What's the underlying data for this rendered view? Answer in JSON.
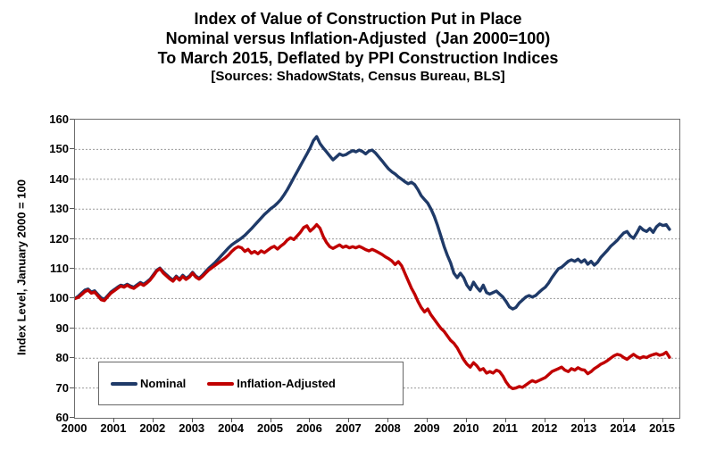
{
  "title": {
    "line1": "Index of Value of Construction Put in Place",
    "line2": "Nominal versus Inflation-Adjusted  (Jan 2000=100)",
    "line3": "To March 2015, Deflated by PPI Construction Indices",
    "line4": "[Sources: ShadowStats, Census Bureau, BLS]"
  },
  "y_axis": {
    "title": "Index Level, January 2000 = 100",
    "min": 60,
    "max": 160,
    "step": 10,
    "tick_labels": [
      160,
      150,
      140,
      130,
      120,
      110,
      100,
      90,
      80,
      70,
      60
    ]
  },
  "x_axis": {
    "tick_labels": [
      "2000",
      "2001",
      "2002",
      "2003",
      "2004",
      "2005",
      "2006",
      "2007",
      "2008",
      "2009",
      "2010",
      "2011",
      "2012",
      "2013",
      "2014",
      "2015"
    ]
  },
  "legend": {
    "items": [
      {
        "label": "Nominal",
        "color": "#1f3a68"
      },
      {
        "label": "Inflation-Adjusted",
        "color": "#c00000"
      }
    ]
  },
  "chart_data": {
    "type": "line",
    "title": "Index of Value of Construction Put in Place, Nominal versus Inflation-Adjusted (Jan 2000=100), To March 2015, Deflated by PPI Construction Indices",
    "xlabel": "",
    "ylabel": "Index Level, January 2000 = 100",
    "ylim": [
      60,
      160
    ],
    "grid": "horizontal-dotted",
    "legend_position": "inside bottom-left",
    "x_start_year": 2000.0,
    "x_step_years": 0.08333,
    "x_end_year": 2015.167,
    "x_axis_range": [
      2000,
      2015.42
    ],
    "x_note": "monthly data, Jan 2000 - Mar 2015",
    "series": [
      {
        "name": "Nominal",
        "color": "#1f3a68",
        "values": [
          100.0,
          100.8,
          101.8,
          102.8,
          103.2,
          102.2,
          102.6,
          101.4,
          100.2,
          99.8,
          101.0,
          102.2,
          103.0,
          103.8,
          104.5,
          104.2,
          104.8,
          104.2,
          103.8,
          104.6,
          105.4,
          104.8,
          105.6,
          106.5,
          108.0,
          109.5,
          110.2,
          109.0,
          108.0,
          107.0,
          106.2,
          107.5,
          106.5,
          107.8,
          106.8,
          107.5,
          108.8,
          107.5,
          106.8,
          107.8,
          109.0,
          110.2,
          111.2,
          112.2,
          113.4,
          114.6,
          115.8,
          117.0,
          118.0,
          118.8,
          119.5,
          120.3,
          121.2,
          122.3,
          123.4,
          124.6,
          125.8,
          127.0,
          128.2,
          129.2,
          130.2,
          131.0,
          132.0,
          133.2,
          134.8,
          136.5,
          138.5,
          140.5,
          142.5,
          144.5,
          146.5,
          148.5,
          150.5,
          153.0,
          154.3,
          152.0,
          150.5,
          149.2,
          147.8,
          146.5,
          147.5,
          148.5,
          148.0,
          148.3,
          149.0,
          149.6,
          149.2,
          149.8,
          149.3,
          148.5,
          149.5,
          149.8,
          148.8,
          147.5,
          146.2,
          144.8,
          143.5,
          142.5,
          141.8,
          140.8,
          140.0,
          139.2,
          138.5,
          139.0,
          138.2,
          136.5,
          134.5,
          133.2,
          132.0,
          130.0,
          127.5,
          124.5,
          121.0,
          117.5,
          114.5,
          112.0,
          108.5,
          107.0,
          108.5,
          107.0,
          104.5,
          103.0,
          105.5,
          103.8,
          102.5,
          104.5,
          102.0,
          101.5,
          102.0,
          102.5,
          101.5,
          100.5,
          99.0,
          97.2,
          96.5,
          97.0,
          98.5,
          99.5,
          100.5,
          101.0,
          100.5,
          101.0,
          102.0,
          103.0,
          103.8,
          105.2,
          107.0,
          108.5,
          110.0,
          110.5,
          111.5,
          112.5,
          113.0,
          112.5,
          113.2,
          112.2,
          113.0,
          111.5,
          112.5,
          111.2,
          112.2,
          113.8,
          115.0,
          116.2,
          117.5,
          118.5,
          119.5,
          120.8,
          122.0,
          122.5,
          121.0,
          120.2,
          122.0,
          124.0,
          123.0,
          122.5,
          123.5,
          122.2,
          124.0,
          125.0,
          124.5,
          124.8,
          123.2
        ]
      },
      {
        "name": "Inflation-Adjusted",
        "color": "#c00000",
        "values": [
          100.0,
          100.4,
          101.3,
          102.3,
          102.8,
          101.8,
          102.2,
          100.9,
          99.6,
          99.3,
          100.6,
          101.8,
          102.6,
          103.4,
          104.2,
          103.8,
          104.5,
          103.8,
          103.4,
          104.2,
          105.0,
          104.4,
          105.2,
          106.2,
          107.6,
          109.2,
          110.0,
          108.6,
          107.6,
          106.6,
          105.8,
          107.2,
          106.2,
          107.4,
          106.4,
          107.2,
          108.5,
          107.2,
          106.5,
          107.4,
          108.5,
          109.6,
          110.4,
          111.2,
          112.0,
          112.8,
          113.6,
          114.6,
          115.8,
          116.8,
          117.4,
          117.0,
          115.8,
          116.5,
          115.2,
          115.8,
          115.0,
          116.0,
          115.4,
          116.2,
          117.0,
          117.5,
          116.6,
          117.6,
          118.4,
          119.6,
          120.4,
          119.8,
          121.0,
          122.2,
          123.8,
          124.4,
          122.6,
          123.6,
          124.8,
          123.6,
          120.8,
          118.8,
          117.4,
          116.8,
          117.4,
          118.0,
          117.2,
          117.6,
          117.0,
          117.4,
          117.0,
          117.5,
          117.0,
          116.4,
          116.0,
          116.5,
          116.0,
          115.4,
          114.8,
          114.0,
          113.4,
          112.6,
          111.4,
          112.4,
          111.0,
          108.5,
          106.0,
          103.5,
          101.5,
          99.0,
          97.0,
          95.5,
          96.5,
          94.5,
          93.0,
          91.5,
          90.0,
          89.0,
          87.5,
          86.0,
          85.0,
          83.5,
          81.5,
          79.5,
          78.0,
          77.0,
          78.5,
          77.5,
          76.0,
          76.5,
          75.0,
          75.5,
          75.0,
          76.0,
          75.5,
          74.0,
          72.0,
          70.5,
          69.8,
          70.0,
          70.5,
          70.2,
          71.0,
          71.8,
          72.5,
          72.0,
          72.5,
          73.0,
          73.5,
          74.5,
          75.5,
          76.0,
          76.5,
          77.0,
          76.0,
          75.5,
          76.5,
          76.0,
          76.8,
          76.2,
          76.0,
          74.8,
          75.5,
          76.5,
          77.2,
          78.0,
          78.5,
          79.2,
          80.0,
          80.8,
          81.3,
          81.0,
          80.2,
          79.6,
          80.5,
          81.3,
          80.5,
          80.0,
          80.5,
          80.2,
          80.8,
          81.2,
          81.5,
          81.0,
          81.3,
          82.0,
          80.3
        ]
      }
    ]
  }
}
